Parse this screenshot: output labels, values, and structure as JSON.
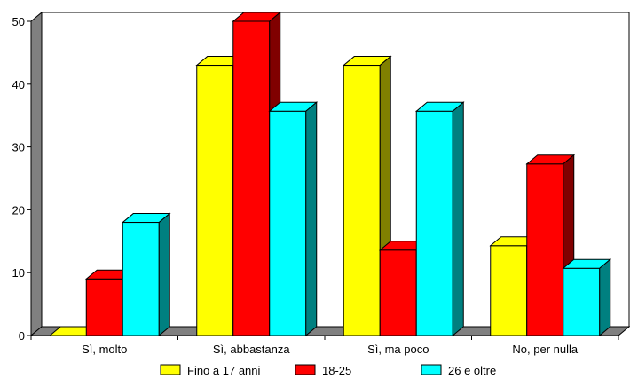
{
  "chart_data": {
    "type": "bar",
    "style": "3d-clustered",
    "categories": [
      "Sì, molto",
      "Sì, abbastanza",
      "Sì, ma poco",
      "No, per nulla"
    ],
    "series": [
      {
        "name": "Fino a 17 anni",
        "values": [
          0,
          43,
          43,
          14.3
        ],
        "color": "#ffff00",
        "side": "#808000"
      },
      {
        "name": "18-25",
        "values": [
          9,
          50,
          13.6,
          27.3
        ],
        "color": "#ff0000",
        "side": "#800000"
      },
      {
        "name": "26 e oltre",
        "values": [
          18,
          35.7,
          35.7,
          10.7
        ],
        "color": "#00ffff",
        "side": "#008080"
      }
    ],
    "ylim": [
      0,
      50
    ],
    "yticks": [
      0,
      10,
      20,
      30,
      40,
      50
    ],
    "grid": false,
    "legend_position": "bottom"
  }
}
